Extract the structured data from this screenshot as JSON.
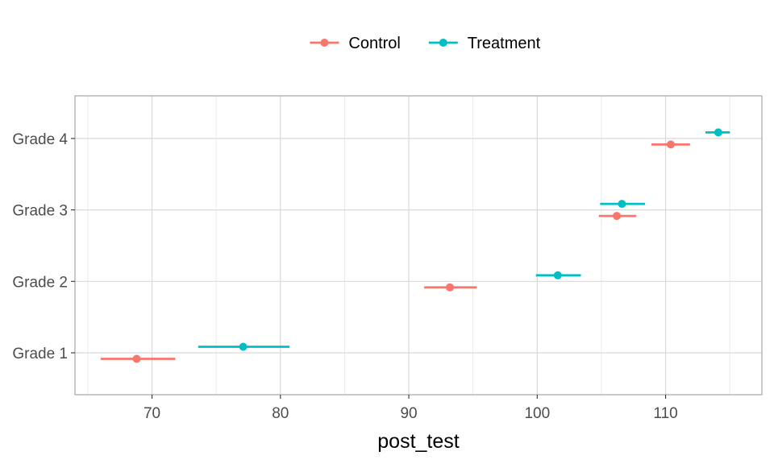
{
  "chart_data": {
    "type": "scatter",
    "title": "",
    "xlabel": "post_test",
    "ylabel": "",
    "categories": [
      "Grade 1",
      "Grade 2",
      "Grade 3",
      "Grade 4"
    ],
    "xlim": [
      64,
      117.5
    ],
    "x_ticks": [
      70,
      80,
      90,
      100,
      110
    ],
    "grid": true,
    "legend": {
      "placement": "top",
      "entries": [
        "Control",
        "Treatment"
      ]
    },
    "series": [
      {
        "name": "Control",
        "color": "#F8766D",
        "points": [
          {
            "category": "Grade 1",
            "mean": 68.8,
            "low": 66.0,
            "high": 71.8
          },
          {
            "category": "Grade 2",
            "mean": 93.2,
            "low": 91.2,
            "high": 95.3
          },
          {
            "category": "Grade 3",
            "mean": 106.2,
            "low": 104.8,
            "high": 107.7
          },
          {
            "category": "Grade 4",
            "mean": 110.4,
            "low": 108.9,
            "high": 111.9
          }
        ]
      },
      {
        "name": "Treatment",
        "color": "#00BFC4",
        "points": [
          {
            "category": "Grade 1",
            "mean": 77.1,
            "low": 73.6,
            "high": 80.7
          },
          {
            "category": "Grade 2",
            "mean": 101.6,
            "low": 99.9,
            "high": 103.4
          },
          {
            "category": "Grade 3",
            "mean": 106.6,
            "low": 104.9,
            "high": 108.4
          },
          {
            "category": "Grade 4",
            "mean": 114.1,
            "low": 113.1,
            "high": 115.0
          }
        ]
      }
    ]
  }
}
